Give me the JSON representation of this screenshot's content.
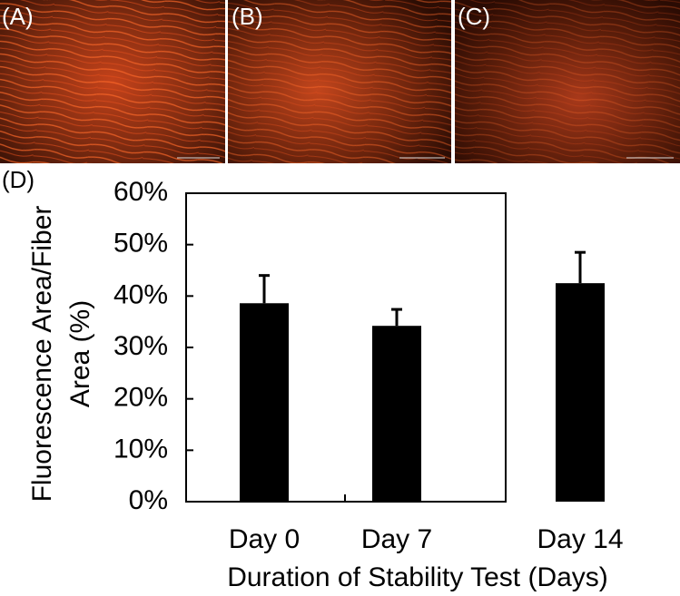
{
  "panel_labels": [
    "(A)",
    "(B)",
    "(C)"
  ],
  "chart_data": {
    "type": "bar",
    "panel_label": "(D)",
    "y_label": [
      "Fluorescence Area/Fiber",
      "Area (%)"
    ],
    "x_label": "Duration of Stability Test (Days)",
    "categories": [
      "Day 0",
      "Day 7",
      "Day 14"
    ],
    "values": [
      38.6,
      34.2,
      42.5
    ],
    "errors": [
      5.4,
      3.2,
      6.0
    ],
    "color": "#000000",
    "ylim": [
      0,
      60
    ],
    "yticks": [
      {
        "value": 0,
        "label": "0%"
      },
      {
        "value": 10,
        "label": "10%"
      },
      {
        "value": 20,
        "label": "20%"
      },
      {
        "value": 30,
        "label": "30%"
      },
      {
        "value": 40,
        "label": "40%"
      },
      {
        "value": 50,
        "label": "50%"
      },
      {
        "value": 60,
        "label": "60%"
      }
    ],
    "grid": false
  }
}
